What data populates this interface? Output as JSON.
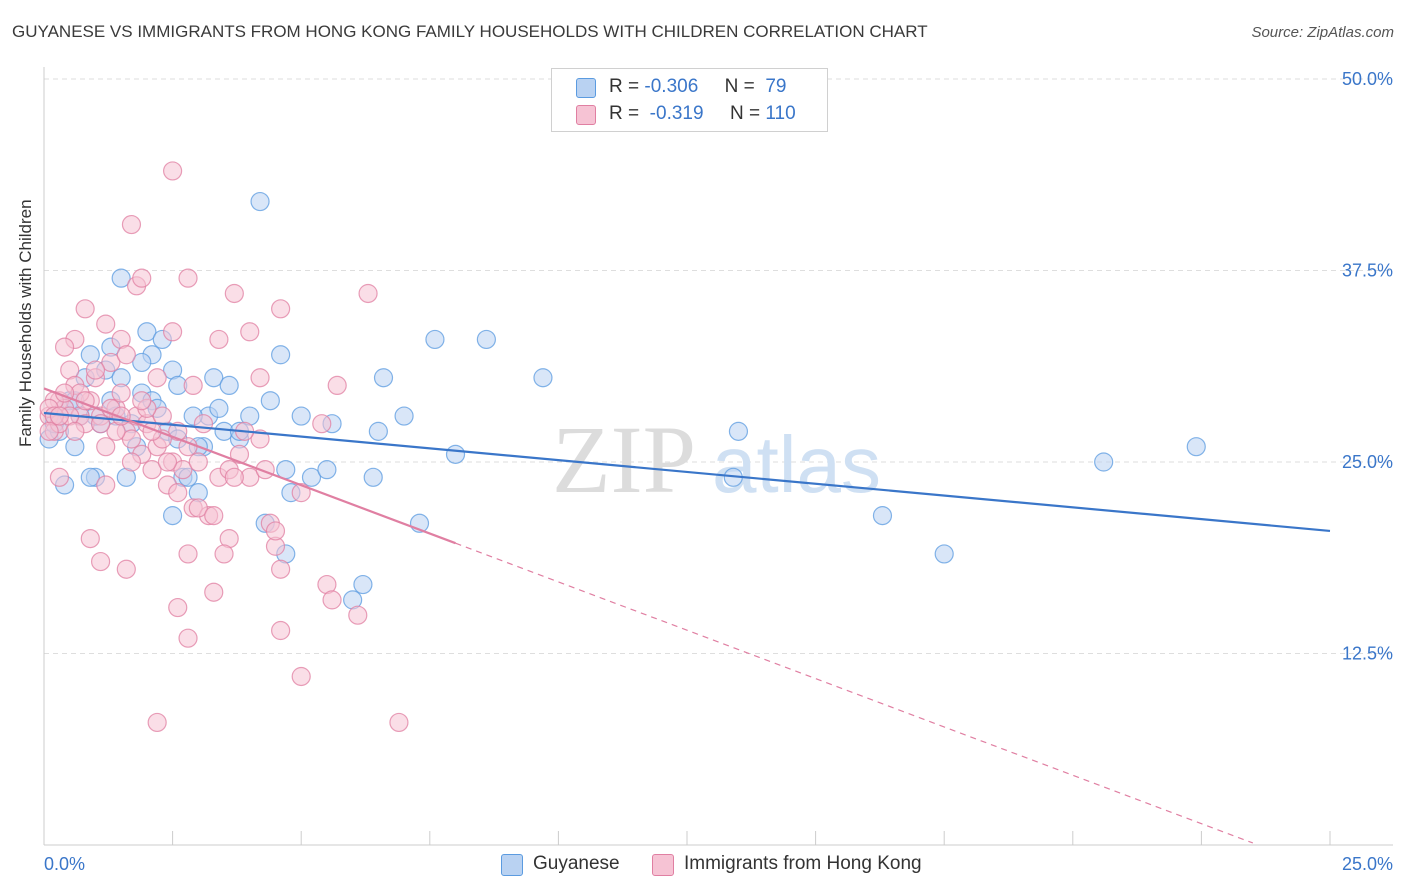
{
  "title": "GUYANESE VS IMMIGRANTS FROM HONG KONG FAMILY HOUSEHOLDS WITH CHILDREN CORRELATION CHART",
  "source": "Source: ZipAtlas.com",
  "watermark": {
    "zip": "ZIP",
    "atlas": "atlas"
  },
  "legend": {
    "r_label": "R =",
    "n_label": "N =",
    "items": [
      {
        "name": "Guyanese",
        "r": "-0.306",
        "n": "79",
        "color": "#5b9be0",
        "fill": "#b9d2f2"
      },
      {
        "name": "Immigrants from Hong Kong",
        "r": "-0.319",
        "n": "110",
        "color": "#e07fa2",
        "fill": "#f6c3d4"
      }
    ]
  },
  "chart_data": {
    "type": "scatter",
    "title": "GUYANESE VS IMMIGRANTS FROM HONG KONG FAMILY HOUSEHOLDS WITH CHILDREN CORRELATION CHART",
    "xlabel": "",
    "ylabel": "Family Households with Children",
    "xlim": [
      0,
      25
    ],
    "ylim": [
      0,
      50
    ],
    "x_tick_labels": [
      "0.0%",
      "25.0%"
    ],
    "y_tick_labels": [
      "12.5%",
      "25.0%",
      "37.5%",
      "50.0%"
    ],
    "y_ticks": [
      12.5,
      25.0,
      37.5,
      50.0
    ],
    "grid": true,
    "series": [
      {
        "name": "Guyanese",
        "color": "#3a76c9",
        "trend": {
          "x0": 0,
          "y0": 28.2,
          "x1": 25,
          "y1": 20.5
        },
        "points": [
          [
            0.1,
            26.5
          ],
          [
            0.2,
            28.0
          ],
          [
            0.3,
            27.0
          ],
          [
            0.4,
            28.5
          ],
          [
            0.5,
            29.0
          ],
          [
            0.6,
            26.0
          ],
          [
            0.7,
            28.0
          ],
          [
            0.8,
            30.5
          ],
          [
            0.9,
            32.0
          ],
          [
            1.0,
            24.0
          ],
          [
            1.1,
            27.5
          ],
          [
            1.2,
            31.0
          ],
          [
            1.3,
            29.0
          ],
          [
            1.4,
            28.0
          ],
          [
            1.5,
            30.5
          ],
          [
            1.5,
            37.0
          ],
          [
            1.6,
            24.0
          ],
          [
            1.7,
            27.5
          ],
          [
            1.8,
            26.0
          ],
          [
            1.9,
            29.5
          ],
          [
            2.0,
            33.5
          ],
          [
            2.1,
            29.0
          ],
          [
            2.1,
            32.0
          ],
          [
            2.2,
            28.5
          ],
          [
            2.3,
            33.0
          ],
          [
            2.4,
            27.0
          ],
          [
            2.5,
            31.0
          ],
          [
            2.6,
            26.5
          ],
          [
            2.6,
            30.0
          ],
          [
            2.7,
            24.0
          ],
          [
            2.8,
            24.0
          ],
          [
            3.0,
            23.0
          ],
          [
            3.1,
            26.0
          ],
          [
            3.2,
            28.0
          ],
          [
            3.3,
            30.5
          ],
          [
            3.4,
            28.5
          ],
          [
            3.5,
            27.0
          ],
          [
            3.6,
            30.0
          ],
          [
            4.0,
            28.0
          ],
          [
            4.3,
            21.0
          ],
          [
            4.7,
            19.0
          ],
          [
            5.2,
            24.0
          ],
          [
            5.6,
            27.5
          ],
          [
            6.2,
            17.0
          ],
          [
            6.6,
            30.5
          ],
          [
            7.0,
            28.0
          ],
          [
            7.6,
            33.0
          ],
          [
            8.6,
            33.0
          ],
          [
            9.7,
            30.5
          ],
          [
            13.5,
            27.0
          ],
          [
            13.4,
            24.0
          ],
          [
            16.3,
            21.5
          ],
          [
            17.5,
            19.0
          ],
          [
            20.6,
            25.0
          ],
          [
            22.4,
            26.0
          ],
          [
            3.0,
            26.0
          ],
          [
            4.4,
            29.0
          ],
          [
            5.0,
            28.0
          ],
          [
            5.5,
            24.5
          ],
          [
            6.0,
            16.0
          ],
          [
            6.4,
            24.0
          ],
          [
            6.5,
            27.0
          ],
          [
            7.3,
            21.0
          ],
          [
            3.8,
            26.5
          ],
          [
            4.7,
            24.5
          ],
          [
            0.4,
            23.5
          ],
          [
            0.6,
            29.0
          ],
          [
            1.3,
            32.5
          ],
          [
            4.6,
            32.0
          ],
          [
            8.0,
            25.5
          ],
          [
            2.9,
            28.0
          ],
          [
            0.2,
            27.5
          ],
          [
            4.2,
            42.0
          ],
          [
            1.9,
            31.5
          ],
          [
            1.0,
            28.0
          ],
          [
            3.8,
            27.0
          ],
          [
            4.8,
            23.0
          ],
          [
            2.5,
            21.5
          ],
          [
            0.9,
            24.0
          ]
        ]
      },
      {
        "name": "Immigrants from Hong Kong",
        "color": "#e07fa2",
        "trend": {
          "x0": 0,
          "y0": 29.8,
          "x1": 8.0,
          "y1": 19.7,
          "x_dash_end": 23.5
        },
        "points": [
          [
            0.1,
            28.0
          ],
          [
            0.2,
            27.0
          ],
          [
            0.3,
            29.0
          ],
          [
            0.4,
            28.5
          ],
          [
            0.5,
            31.0
          ],
          [
            0.6,
            30.0
          ],
          [
            0.7,
            28.0
          ],
          [
            0.8,
            27.5
          ],
          [
            0.9,
            29.0
          ],
          [
            1.0,
            30.5
          ],
          [
            1.1,
            28.0
          ],
          [
            1.2,
            26.0
          ],
          [
            1.3,
            31.5
          ],
          [
            1.4,
            28.5
          ],
          [
            1.5,
            29.5
          ],
          [
            1.6,
            27.0
          ],
          [
            1.7,
            26.5
          ],
          [
            1.8,
            28.0
          ],
          [
            1.9,
            25.5
          ],
          [
            2.0,
            27.5
          ],
          [
            2.1,
            24.5
          ],
          [
            2.2,
            26.0
          ],
          [
            2.3,
            28.0
          ],
          [
            2.4,
            23.5
          ],
          [
            2.5,
            25.0
          ],
          [
            2.6,
            27.0
          ],
          [
            2.7,
            24.5
          ],
          [
            2.8,
            26.0
          ],
          [
            2.9,
            22.0
          ],
          [
            3.0,
            25.0
          ],
          [
            3.2,
            21.5
          ],
          [
            3.4,
            24.0
          ],
          [
            3.6,
            20.0
          ],
          [
            3.8,
            25.5
          ],
          [
            4.0,
            24.0
          ],
          [
            4.2,
            26.5
          ],
          [
            4.4,
            21.0
          ],
          [
            4.6,
            18.0
          ],
          [
            5.0,
            23.0
          ],
          [
            5.5,
            17.0
          ],
          [
            6.1,
            15.0
          ],
          [
            2.5,
            44.0
          ],
          [
            1.7,
            40.5
          ],
          [
            2.8,
            37.0
          ],
          [
            3.7,
            36.0
          ],
          [
            1.8,
            36.5
          ],
          [
            1.9,
            37.0
          ],
          [
            0.8,
            35.0
          ],
          [
            1.5,
            33.0
          ],
          [
            2.5,
            33.5
          ],
          [
            3.4,
            33.0
          ],
          [
            4.0,
            33.5
          ],
          [
            4.6,
            35.0
          ],
          [
            6.3,
            36.0
          ],
          [
            5.7,
            30.0
          ],
          [
            1.2,
            34.0
          ],
          [
            0.6,
            33.0
          ],
          [
            0.4,
            32.5
          ],
          [
            1.6,
            32.0
          ],
          [
            2.2,
            30.5
          ],
          [
            2.9,
            30.0
          ],
          [
            4.2,
            30.5
          ],
          [
            0.9,
            20.0
          ],
          [
            1.6,
            18.0
          ],
          [
            2.6,
            15.5
          ],
          [
            2.8,
            19.0
          ],
          [
            3.3,
            16.5
          ],
          [
            2.8,
            13.5
          ],
          [
            4.6,
            14.0
          ],
          [
            5.0,
            11.0
          ],
          [
            2.2,
            8.0
          ],
          [
            6.9,
            8.0
          ],
          [
            1.1,
            18.5
          ],
          [
            1.7,
            25.0
          ],
          [
            3.5,
            19.0
          ],
          [
            4.5,
            19.5
          ],
          [
            0.2,
            29.0
          ],
          [
            0.3,
            27.5
          ],
          [
            0.5,
            28.0
          ],
          [
            0.7,
            29.5
          ],
          [
            1.0,
            31.0
          ],
          [
            1.4,
            27.0
          ],
          [
            2.0,
            28.5
          ],
          [
            2.3,
            26.5
          ],
          [
            3.1,
            27.5
          ],
          [
            3.9,
            27.0
          ],
          [
            0.3,
            24.0
          ],
          [
            1.2,
            23.5
          ],
          [
            2.6,
            23.0
          ],
          [
            3.6,
            24.5
          ],
          [
            4.3,
            24.5
          ],
          [
            5.4,
            27.5
          ],
          [
            0.4,
            29.5
          ],
          [
            0.6,
            27.0
          ],
          [
            0.8,
            29.0
          ],
          [
            1.3,
            28.5
          ],
          [
            1.5,
            28.0
          ],
          [
            2.1,
            27.0
          ],
          [
            2.4,
            25.0
          ],
          [
            3.0,
            22.0
          ],
          [
            3.3,
            21.5
          ],
          [
            3.7,
            24.0
          ],
          [
            4.5,
            20.5
          ],
          [
            5.6,
            16.0
          ],
          [
            0.1,
            28.5
          ],
          [
            0.2,
            28.0
          ],
          [
            0.3,
            28.0
          ],
          [
            1.1,
            27.5
          ],
          [
            1.9,
            29.0
          ],
          [
            0.1,
            27.0
          ]
        ]
      }
    ]
  }
}
